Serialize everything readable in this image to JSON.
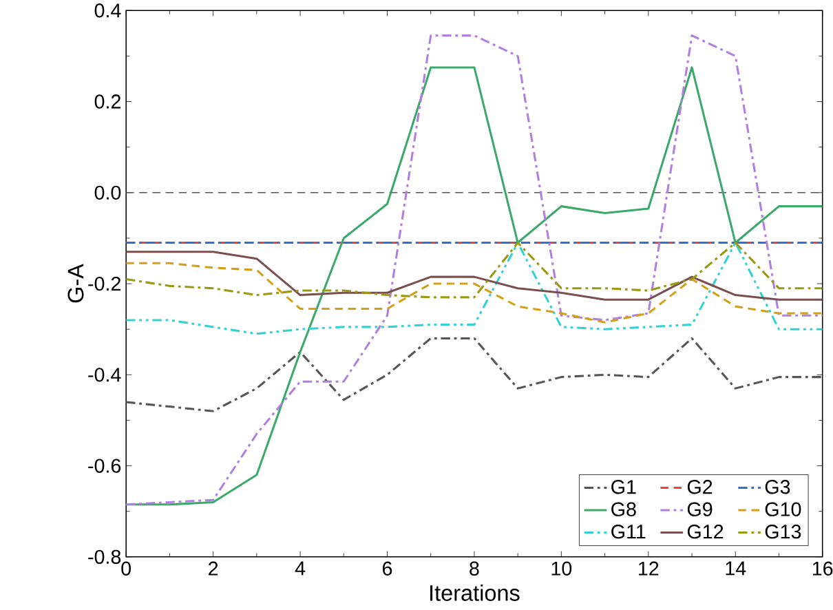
{
  "chart_data": {
    "type": "line",
    "xlabel": "Iterations",
    "ylabel": "G-A",
    "x": [
      0,
      1,
      2,
      3,
      4,
      5,
      6,
      7,
      8,
      9,
      10,
      11,
      12,
      13,
      14,
      15,
      16
    ],
    "xlim": [
      0,
      16
    ],
    "xticks": [
      0,
      2,
      4,
      6,
      8,
      10,
      12,
      14,
      16
    ],
    "ylim": [
      -0.8,
      0.4
    ],
    "yticks": [
      -0.8,
      -0.6,
      -0.4,
      -0.2,
      {
        "value": 0,
        "label": "0.0"
      },
      0.2,
      0.4
    ],
    "grid": false,
    "legend": "bottom right",
    "marker": "none",
    "ref_lines": [
      {
        "axis": "y",
        "value": 0,
        "color": "#555555",
        "line_style": "dashed"
      }
    ],
    "series": [
      {
        "name": "G1",
        "color": "#555555",
        "line_style": "dashdot",
        "values": [
          -0.46,
          -0.47,
          -0.48,
          -0.43,
          -0.35,
          -0.455,
          -0.4,
          -0.32,
          -0.32,
          -0.43,
          -0.405,
          -0.4,
          -0.405,
          -0.32,
          -0.43,
          -0.405,
          -0.405
        ]
      },
      {
        "name": "G2",
        "color": "#e8433f",
        "line_style": "dashed",
        "values": [
          -0.11,
          -0.11,
          -0.11,
          -0.11,
          -0.11,
          -0.11,
          -0.11,
          -0.11,
          -0.11,
          -0.11,
          -0.11,
          -0.11,
          -0.11,
          -0.11,
          -0.11,
          -0.11,
          -0.11
        ]
      },
      {
        "name": "G3",
        "color": "#2f6fd6",
        "line_style": "dashdot",
        "values": [
          -0.11,
          -0.11,
          -0.11,
          -0.11,
          -0.11,
          -0.11,
          -0.11,
          -0.11,
          -0.11,
          -0.11,
          -0.11,
          -0.11,
          -0.11,
          -0.11,
          -0.11,
          -0.11,
          -0.11
        ]
      },
      {
        "name": "G8",
        "color": "#3aaa6a",
        "line_style": "solid",
        "values": [
          -0.685,
          -0.685,
          -0.68,
          -0.62,
          -0.35,
          -0.1,
          -0.025,
          0.275,
          0.275,
          -0.11,
          -0.03,
          -0.045,
          -0.035,
          0.275,
          -0.11,
          -0.03,
          -0.03
        ]
      },
      {
        "name": "G9",
        "color": "#b07fe0",
        "line_style": "dashdot",
        "values": [
          -0.685,
          -0.68,
          -0.675,
          -0.53,
          -0.415,
          -0.415,
          -0.27,
          0.345,
          0.345,
          0.3,
          -0.27,
          -0.28,
          -0.265,
          0.345,
          0.3,
          -0.27,
          -0.27
        ]
      },
      {
        "name": "G10",
        "color": "#d4a017",
        "line_style": "dashed",
        "values": [
          -0.155,
          -0.155,
          -0.165,
          -0.17,
          -0.255,
          -0.255,
          -0.255,
          -0.2,
          -0.2,
          -0.25,
          -0.265,
          -0.285,
          -0.265,
          -0.19,
          -0.25,
          -0.265,
          -0.265
        ]
      },
      {
        "name": "G11",
        "color": "#33d1d1",
        "line_style": "dashdotdot",
        "values": [
          -0.28,
          -0.28,
          -0.295,
          -0.31,
          -0.3,
          -0.295,
          -0.295,
          -0.29,
          -0.29,
          -0.11,
          -0.295,
          -0.3,
          -0.295,
          -0.29,
          -0.11,
          -0.3,
          -0.3
        ]
      },
      {
        "name": "G12",
        "color": "#7b4f4f",
        "line_style": "solid",
        "values": [
          -0.13,
          -0.13,
          -0.13,
          -0.145,
          -0.225,
          -0.22,
          -0.22,
          -0.185,
          -0.185,
          -0.21,
          -0.22,
          -0.235,
          -0.235,
          -0.185,
          -0.225,
          -0.235,
          -0.235
        ]
      },
      {
        "name": "G13",
        "color": "#9a9a10",
        "line_style": "dashdot",
        "values": [
          -0.19,
          -0.205,
          -0.21,
          -0.225,
          -0.215,
          -0.215,
          -0.225,
          -0.23,
          -0.23,
          -0.11,
          -0.21,
          -0.21,
          -0.215,
          -0.19,
          -0.11,
          -0.21,
          -0.21
        ]
      }
    ]
  }
}
